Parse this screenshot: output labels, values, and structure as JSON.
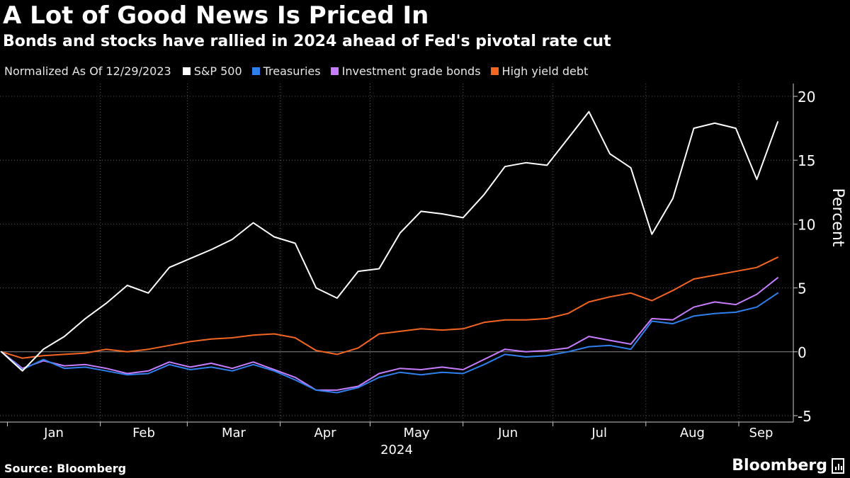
{
  "header": {
    "title": "A Lot of Good News Is Priced In",
    "subtitle": "Bonds and stocks have rallied in 2024 ahead of Fed's pivotal rate cut"
  },
  "legend": {
    "note": "Normalized As Of 12/29/2023",
    "entries": [
      {
        "label": "S&P 500",
        "color": "#ffffff"
      },
      {
        "label": "Treasuries",
        "color": "#2f80ed"
      },
      {
        "label": "Investment grade bonds",
        "color": "#c77dff"
      },
      {
        "label": "High yield debt",
        "color": "#f26522"
      }
    ]
  },
  "footer": {
    "source": "Source: Bloomberg",
    "brand": "Bloomberg"
  },
  "chart_data": {
    "type": "line",
    "xlabel": "2024",
    "ylabel": "Percent",
    "ylim": [
      -5.5,
      21
    ],
    "yticks": [
      -5,
      0,
      5,
      10,
      15,
      20
    ],
    "ytick_labels": [
      "-5",
      "0",
      "5",
      "10",
      "15",
      "20"
    ],
    "months": [
      "Jan",
      "Feb",
      "Mar",
      "Apr",
      "May",
      "Jun",
      "Jul",
      "Aug",
      "Sep"
    ],
    "grid": true,
    "x_dates": "weekly, 2023-12-29 to 2024-09-13",
    "x": [
      "2023-12-29",
      "2024-01-05",
      "2024-01-12",
      "2024-01-19",
      "2024-01-26",
      "2024-02-02",
      "2024-02-09",
      "2024-02-16",
      "2024-02-23",
      "2024-03-01",
      "2024-03-08",
      "2024-03-15",
      "2024-03-22",
      "2024-03-29",
      "2024-04-05",
      "2024-04-12",
      "2024-04-19",
      "2024-04-26",
      "2024-05-03",
      "2024-05-10",
      "2024-05-17",
      "2024-05-24",
      "2024-05-31",
      "2024-06-07",
      "2024-06-14",
      "2024-06-21",
      "2024-06-28",
      "2024-07-05",
      "2024-07-12",
      "2024-07-19",
      "2024-07-26",
      "2024-08-02",
      "2024-08-09",
      "2024-08-16",
      "2024-08-23",
      "2024-08-30",
      "2024-09-06",
      "2024-09-13"
    ],
    "series": [
      {
        "name": "S&P 500",
        "color": "#ffffff",
        "values": [
          0,
          -1.5,
          0.2,
          1.2,
          2.6,
          3.8,
          5.2,
          4.6,
          6.6,
          7.3,
          8.0,
          8.8,
          10.1,
          9.0,
          8.5,
          5.0,
          4.2,
          6.3,
          6.5,
          9.3,
          11.0,
          10.8,
          10.5,
          12.3,
          14.5,
          14.8,
          14.6,
          16.7,
          18.8,
          15.5,
          14.4,
          9.2,
          12.0,
          17.5,
          17.9,
          17.5,
          13.5,
          18.0
        ]
      },
      {
        "name": "Treasuries",
        "color": "#2f80ed",
        "values": [
          0,
          -1.4,
          -0.6,
          -1.3,
          -1.2,
          -1.5,
          -1.8,
          -1.7,
          -1.0,
          -1.4,
          -1.2,
          -1.5,
          -1.0,
          -1.5,
          -2.2,
          -3.0,
          -3.2,
          -2.8,
          -2.0,
          -1.6,
          -1.8,
          -1.6,
          -1.7,
          -1.0,
          -0.2,
          -0.4,
          -0.3,
          0.0,
          0.4,
          0.5,
          0.2,
          2.4,
          2.2,
          2.8,
          3.0,
          3.1,
          3.5,
          4.6
        ]
      },
      {
        "name": "Investment grade bonds",
        "color": "#c77dff",
        "values": [
          0,
          -1.3,
          -0.7,
          -1.1,
          -1.0,
          -1.3,
          -1.7,
          -1.5,
          -0.8,
          -1.2,
          -0.9,
          -1.3,
          -0.8,
          -1.4,
          -2.0,
          -3.0,
          -3.0,
          -2.7,
          -1.7,
          -1.3,
          -1.4,
          -1.2,
          -1.4,
          -0.6,
          0.2,
          0.0,
          0.1,
          0.3,
          1.2,
          0.9,
          0.6,
          2.6,
          2.5,
          3.5,
          3.9,
          3.7,
          4.5,
          5.8
        ]
      },
      {
        "name": "High yield debt",
        "color": "#f26522",
        "values": [
          0,
          -0.5,
          -0.3,
          -0.2,
          -0.1,
          0.2,
          0.0,
          0.2,
          0.5,
          0.8,
          1.0,
          1.1,
          1.3,
          1.4,
          1.1,
          0.1,
          -0.2,
          0.3,
          1.4,
          1.6,
          1.8,
          1.7,
          1.8,
          2.3,
          2.5,
          2.5,
          2.6,
          3.0,
          3.9,
          4.3,
          4.6,
          4.0,
          4.8,
          5.7,
          6.0,
          6.3,
          6.6,
          7.4
        ]
      }
    ]
  }
}
